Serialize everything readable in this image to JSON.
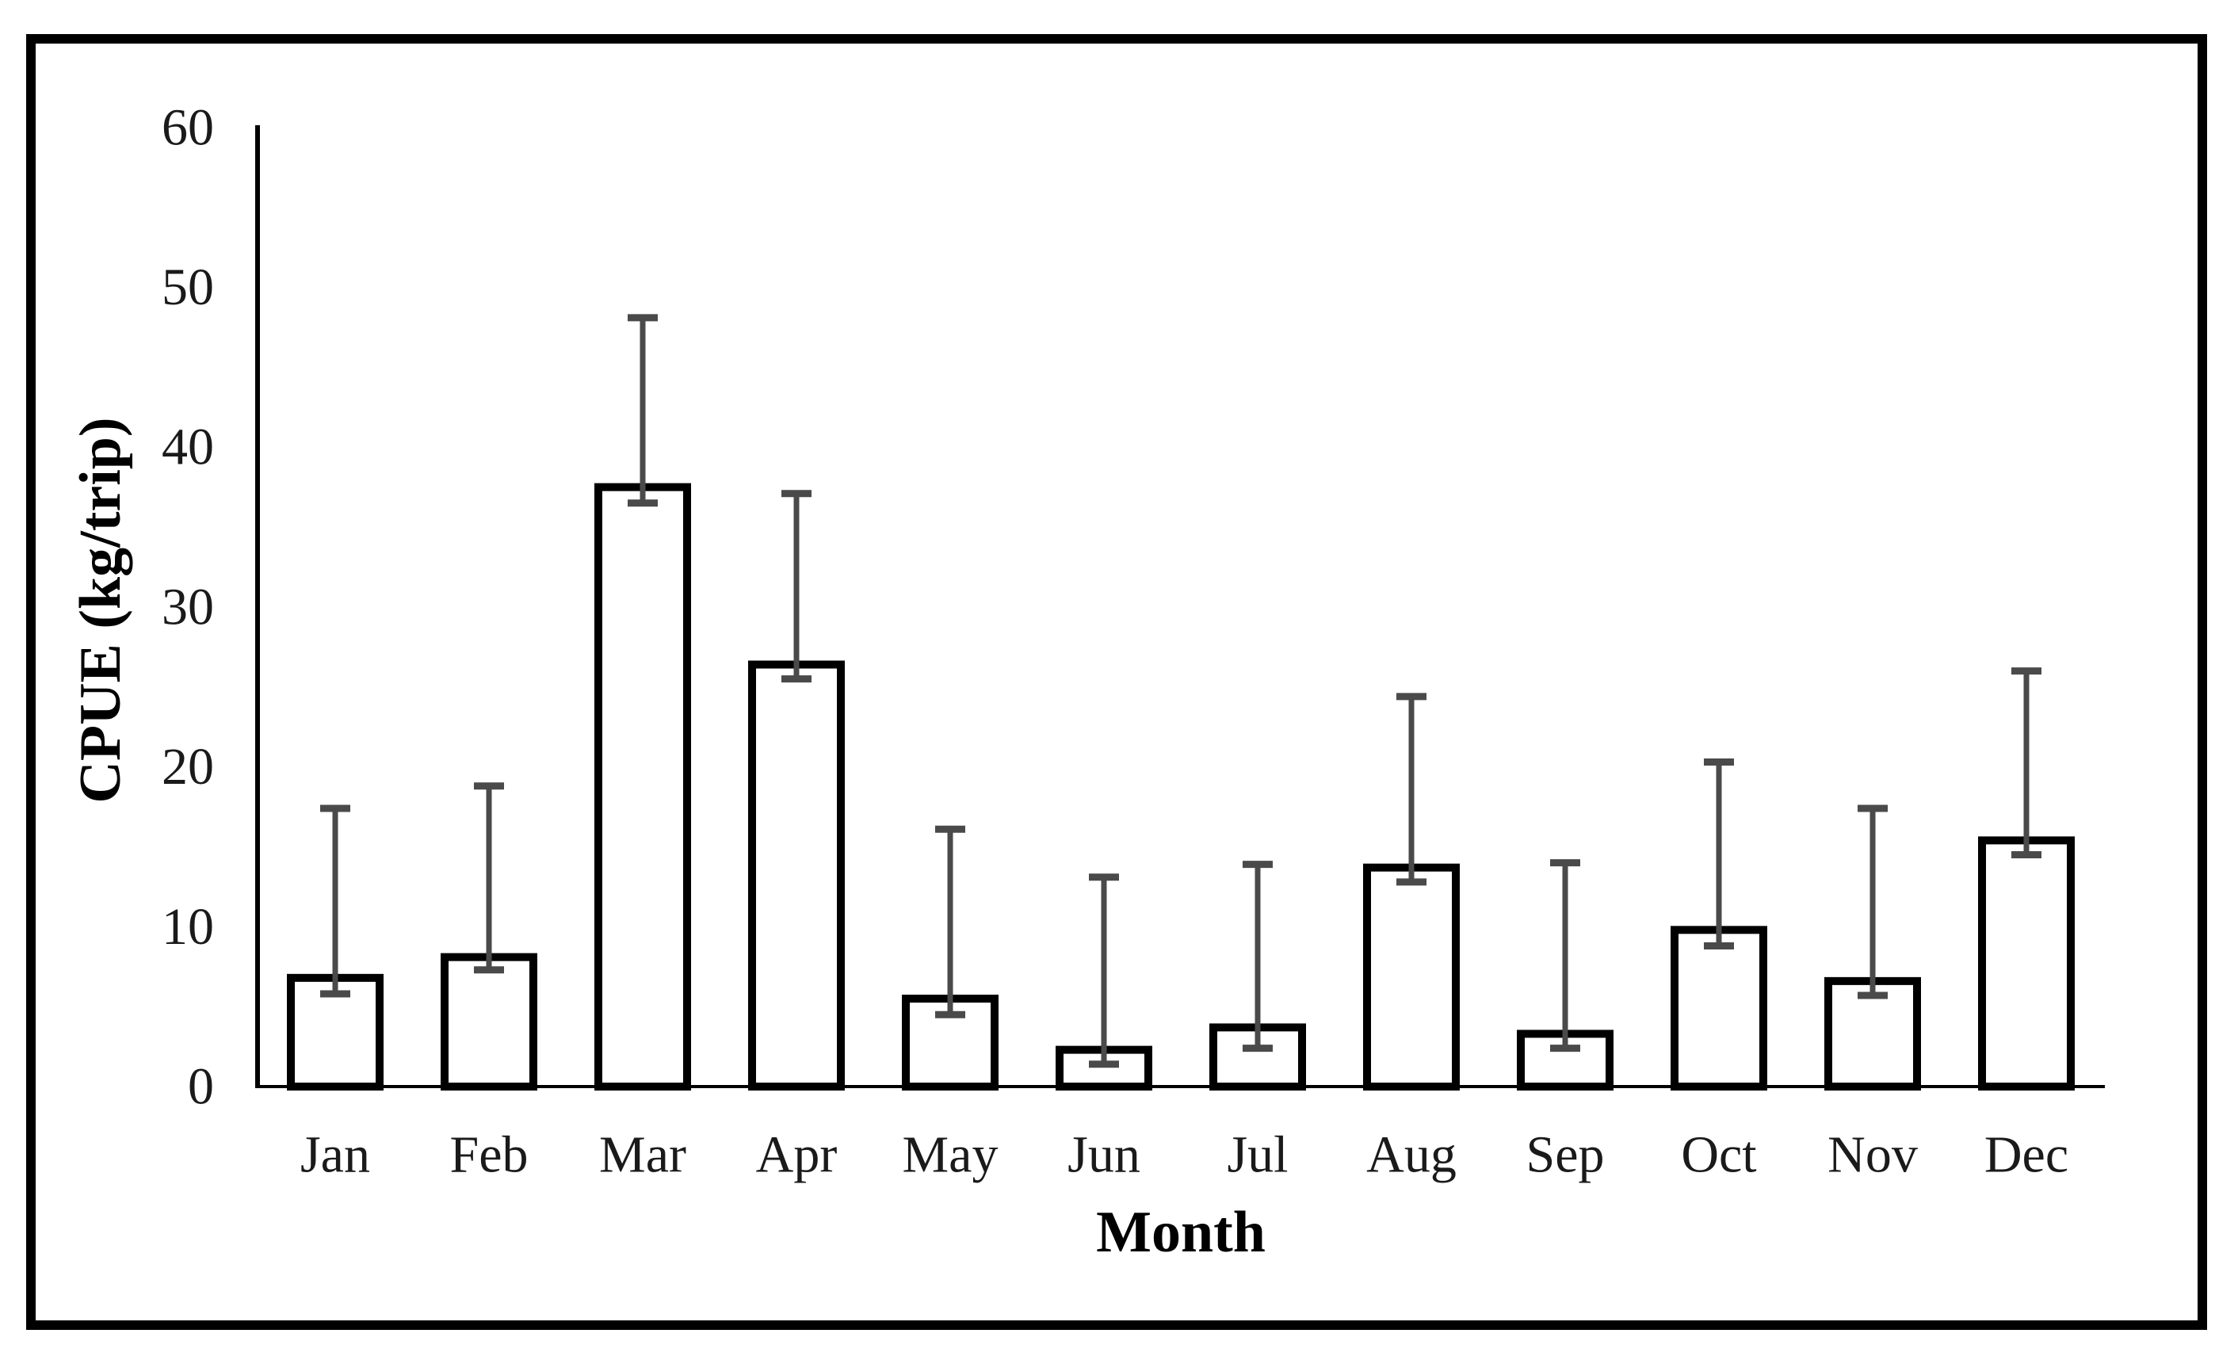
{
  "page": {
    "background_color": "#ffffff",
    "figure_border_color": "#000000"
  },
  "chart_data": {
    "type": "bar",
    "title": "",
    "categories": [
      "Jan",
      "Feb",
      "Mar",
      "Apr",
      "May",
      "Jun",
      "Jul",
      "Aug",
      "Sep",
      "Oct",
      "Nov",
      "Dec"
    ],
    "series": [
      {
        "name": "CPUE",
        "values": [
          6.8,
          8.1,
          37.5,
          26.4,
          5.5,
          2.3,
          3.7,
          13.7,
          3.3,
          9.8,
          6.6,
          15.4
        ],
        "error_upper": [
          17.4,
          18.8,
          48.1,
          37.1,
          16.1,
          13.1,
          13.9,
          24.4,
          14.0,
          20.3,
          17.4,
          26.0
        ],
        "error_lower": [
          5.8,
          7.3,
          36.5,
          25.5,
          4.5,
          1.4,
          2.4,
          12.8,
          2.4,
          8.8,
          5.7,
          14.5
        ]
      }
    ],
    "xlabel": "Month",
    "ylabel": "CPUE (kg/trip)",
    "ylim": [
      0,
      60
    ],
    "yticks": [
      0,
      10,
      20,
      30,
      40,
      50,
      60
    ],
    "grid": false,
    "legend_position": "none",
    "bar_fill": "#ffffff",
    "bar_stroke": "#000000",
    "error_bar_color": "#4a4a4a",
    "axis_color": "#000000"
  }
}
